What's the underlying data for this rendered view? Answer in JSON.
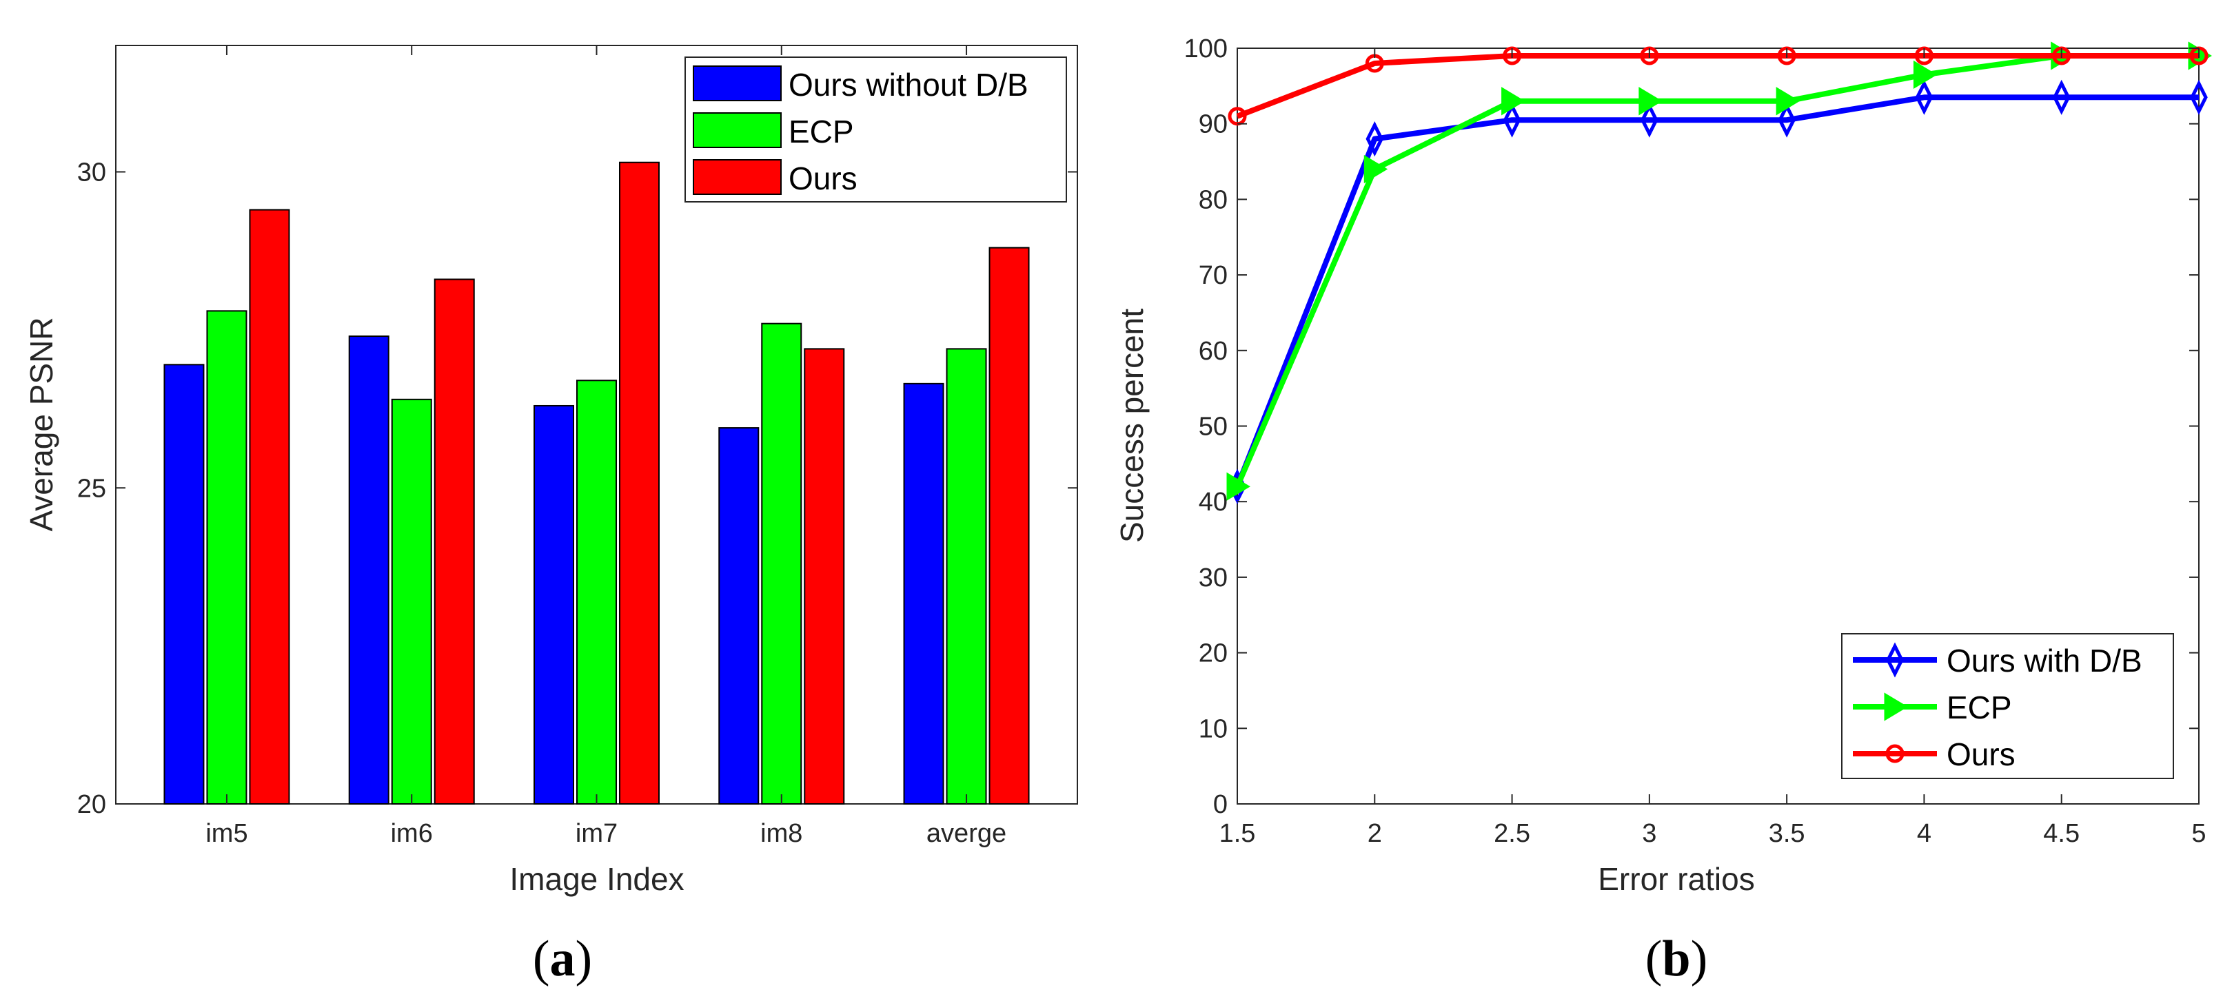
{
  "chart_data": [
    {
      "type": "bar",
      "panel_label": {
        "open": "(",
        "letter": "a",
        "close": ")"
      },
      "title": "",
      "xlabel": "Image Index",
      "ylabel": "Average PSNR",
      "ylim": [
        20,
        32
      ],
      "yticks": [
        "20",
        "25",
        "30"
      ],
      "categories": [
        "im5",
        "im6",
        "im7",
        "im8",
        "averge"
      ],
      "grid": false,
      "legend_position": "top-right",
      "series": [
        {
          "name": "Ours without D/B",
          "color": "#0000FF",
          "values": [
            26.95,
            27.4,
            26.3,
            25.95,
            26.65
          ]
        },
        {
          "name": "ECP",
          "color": "#00FF00",
          "values": [
            27.8,
            26.4,
            26.7,
            27.6,
            27.2
          ]
        },
        {
          "name": "Ours",
          "color": "#FF0000",
          "values": [
            29.4,
            28.3,
            30.15,
            27.2,
            28.8
          ]
        }
      ]
    },
    {
      "type": "line",
      "panel_label": {
        "open": "(",
        "letter": "b",
        "close": ")"
      },
      "title": "",
      "xlabel": "Error ratios",
      "ylabel": "Success percent",
      "xlim": [
        1.5,
        5
      ],
      "ylim": [
        0,
        100
      ],
      "x": [
        1.5,
        2,
        2.5,
        3,
        3.5,
        4,
        4.5,
        5
      ],
      "xticks": [
        "1.5",
        "2",
        "2.5",
        "3",
        "3.5",
        "4",
        "4.5",
        "5"
      ],
      "yticks": [
        "0",
        "10",
        "20",
        "30",
        "40",
        "50",
        "60",
        "70",
        "80",
        "90",
        "100"
      ],
      "grid": false,
      "legend_position": "bottom-right",
      "series": [
        {
          "name": "Ours with D/B",
          "color": "#0000FF",
          "marker": "diamond",
          "values": [
            42,
            88,
            90.5,
            90.5,
            90.5,
            93.5,
            93.5,
            93.5
          ]
        },
        {
          "name": "ECP",
          "color": "#00FF00",
          "marker": "triangle-right",
          "values": [
            42,
            84,
            93,
            93,
            93,
            96.5,
            99,
            99
          ]
        },
        {
          "name": "Ours",
          "color": "#FF0000",
          "marker": "circle",
          "values": [
            91,
            98,
            99,
            99,
            99,
            99,
            99,
            99
          ]
        }
      ]
    }
  ]
}
